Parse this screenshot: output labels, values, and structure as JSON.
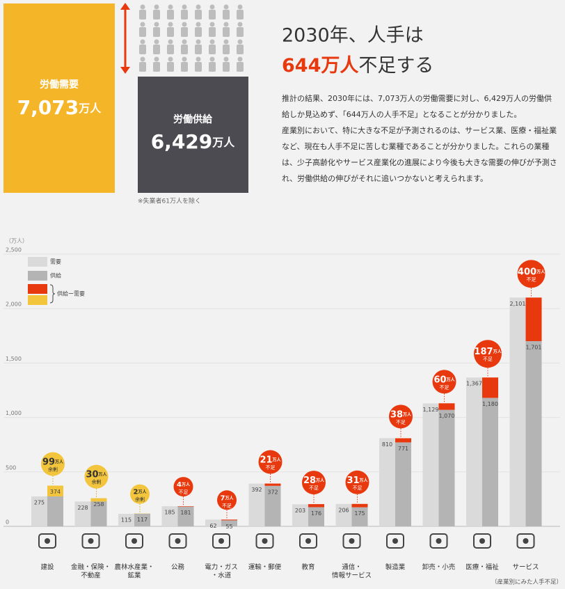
{
  "demand_box": {
    "label": "労働需要",
    "value": "7,073",
    "unit": "万人"
  },
  "supply_box": {
    "label": "労働供給",
    "value": "6,429",
    "unit": "万人"
  },
  "note": "※失業者61万人を除く",
  "headline": {
    "line1": "2030年、人手は",
    "highlight": "644万人",
    "rest": "不足する"
  },
  "body": [
    "推計の結果、2030年には、7,073万人の労働需要に対し、6,429万人の労働供給しか見込めず、「644万人の人手不足」となることが分かりました。",
    "産業別において、特に大きな不足が予測されるのは、サービス業、医療・福祉業など、現在も人手不足に苦しむ業種であることが分かりました。これらの業種は、少子高齢化やサービス産業化の進展により今後も大きな需要の伸びが予測され、労働供給の伸びがそれに追いつかないと考えられます。"
  ],
  "chart_data": {
    "type": "bar",
    "y_unit": "（万人）",
    "categories": [
      [
        "建設"
      ],
      [
        "金融・保険・",
        "不動産"
      ],
      [
        "農林水産業・",
        "鉱業"
      ],
      [
        "公務"
      ],
      [
        "電力・ガス",
        "・水道"
      ],
      [
        "運輸・郵便"
      ],
      [
        "教育"
      ],
      [
        "通信・",
        "情報サービス"
      ],
      [
        "製造業"
      ],
      [
        "卸売・小売"
      ],
      [
        "医療・福祉"
      ],
      [
        "サービス"
      ]
    ],
    "series": [
      {
        "name": "需要",
        "color": "#dadada",
        "values": [
          275,
          228,
          115,
          185,
          62,
          392,
          203,
          206,
          810,
          1129,
          1367,
          2101
        ],
        "value_labels": [
          "275",
          "228",
          "115",
          "185",
          "62",
          "392",
          "203",
          "206",
          "810",
          "1,129",
          "1,367",
          "2,101"
        ]
      },
      {
        "name": "供給",
        "color": "#b4b4b4",
        "values": [
          374,
          258,
          117,
          181,
          55,
          372,
          176,
          175,
          771,
          1070,
          1180,
          1701
        ],
        "value_labels": [
          "374",
          "258",
          "117",
          "181",
          "55",
          "372",
          "176",
          "175",
          "771",
          "1,070",
          "1,180",
          "1,701"
        ]
      }
    ],
    "gap": {
      "name": "供給ー需要",
      "values": [
        99,
        30,
        2,
        4,
        7,
        21,
        28,
        31,
        38,
        60,
        187,
        400
      ],
      "unit": "万人",
      "notes": [
        "余剰",
        "余剰",
        "余剰",
        "不足",
        "不足",
        "不足",
        "不足",
        "不足",
        "不足",
        "不足",
        "不足",
        "不足"
      ],
      "shortage_color": "#e8380d",
      "surplus_color": "#f2c53d"
    },
    "ylim": [
      0,
      2500
    ],
    "yticks": [
      0,
      500,
      {
        "value": 1000,
        "label": "1,000"
      },
      {
        "value": 1500,
        "label": "1,500"
      },
      {
        "value": 2000,
        "label": "2,000"
      },
      {
        "value": 2500,
        "label": "2,500"
      }
    ],
    "grid": true,
    "source": "（産業別にみた人手不足）"
  }
}
